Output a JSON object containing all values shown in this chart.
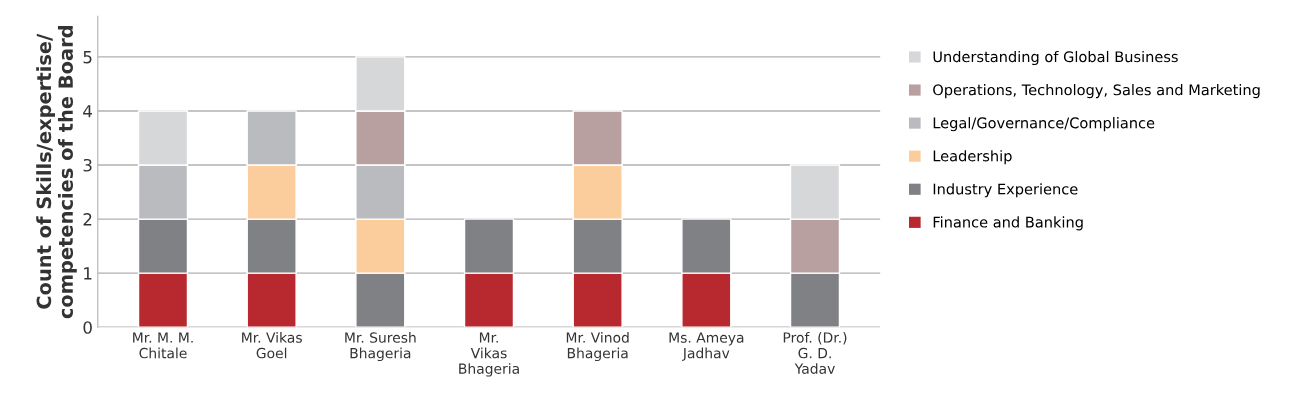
{
  "chart_data": {
    "type": "bar",
    "stacked": true,
    "ylabel": "Count of Skills/expertise/\ncompetencies of the Board",
    "categories": [
      "Mr. M. M.\nChitale",
      "Mr. Vikas\nGoel",
      "Mr. Suresh\nBhageria",
      "Mr.\nVikas\nBhageria",
      "Mr. Vinod\nBhageria",
      "Ms. Ameya\nJadhav",
      "Prof. (Dr.)\nG. D.\nYadav"
    ],
    "series": [
      {
        "name": "Finance and Banking",
        "color": "#b8282f",
        "values": [
          1,
          1,
          0,
          1,
          1,
          1,
          0
        ]
      },
      {
        "name": "Industry Experience",
        "color": "#808184",
        "values": [
          1,
          1,
          1,
          1,
          1,
          1,
          1
        ]
      },
      {
        "name": "Leadership",
        "color": "#fccd9c",
        "values": [
          0,
          1,
          1,
          0,
          1,
          0,
          0
        ]
      },
      {
        "name": "Legal/Governance/Compliance",
        "color": "#babbbf",
        "values": [
          1,
          1,
          1,
          0,
          0,
          0,
          0
        ]
      },
      {
        "name": "Operations, Technology, Sales and Marketing",
        "color": "#b9a0a0",
        "values": [
          0,
          0,
          1,
          0,
          1,
          0,
          1
        ]
      },
      {
        "name": "Understanding of Global Business",
        "color": "#d6d7d9",
        "values": [
          1,
          0,
          1,
          0,
          0,
          0,
          1
        ]
      }
    ],
    "ylim": [
      0,
      5.75
    ],
    "yticks": [
      0,
      1,
      2,
      3,
      4,
      5
    ],
    "grid": "y",
    "legend": "right"
  }
}
